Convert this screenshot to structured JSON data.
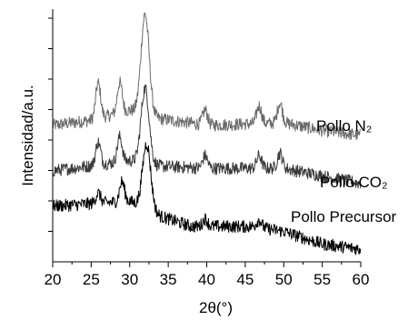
{
  "chart_data": {
    "type": "line",
    "xlabel": "2θ(°)",
    "ylabel": "Intensidad/a.u.",
    "xlim": [
      20,
      60
    ],
    "ylim": [
      0,
      100
    ],
    "x_ticks": [
      "20",
      "25",
      "30",
      "35",
      "40",
      "45",
      "50",
      "55",
      "60"
    ],
    "grid": false,
    "legend": "inline labels at right of each trace",
    "series": [
      {
        "name": "Pollo N₂",
        "color": "#6b6b6b",
        "peaks": [
          [
            25.9,
            14
          ],
          [
            28.7,
            12
          ],
          [
            32.0,
            40
          ],
          [
            39.8,
            6
          ],
          [
            46.8,
            7
          ],
          [
            49.5,
            8
          ]
        ],
        "baseline": [
          [
            20,
            54
          ],
          [
            25,
            56
          ],
          [
            30,
            60
          ],
          [
            33,
            57
          ],
          [
            40,
            54
          ],
          [
            50,
            55
          ],
          [
            55,
            52
          ],
          [
            60,
            50
          ]
        ]
      },
      {
        "name": "Pollo CO₂",
        "color": "#3a3a3a",
        "peaks": [
          [
            25.9,
            9
          ],
          [
            28.7,
            10
          ],
          [
            32.0,
            30
          ],
          [
            39.8,
            5
          ],
          [
            46.8,
            5
          ],
          [
            49.5,
            6
          ]
        ],
        "baseline": [
          [
            20,
            36
          ],
          [
            25,
            38
          ],
          [
            30,
            40
          ],
          [
            33,
            38
          ],
          [
            40,
            37
          ],
          [
            50,
            37
          ],
          [
            55,
            34
          ],
          [
            60,
            31
          ]
        ]
      },
      {
        "name": "Pollo Precursor",
        "color": "#000000",
        "peaks": [
          [
            25.9,
            4
          ],
          [
            29.0,
            8
          ],
          [
            32.2,
            26
          ],
          [
            39.8,
            3
          ],
          [
            46.8,
            3
          ]
        ],
        "baseline": [
          [
            20,
            22
          ],
          [
            25,
            23
          ],
          [
            30,
            24
          ],
          [
            34,
            18
          ],
          [
            38,
            14
          ],
          [
            46,
            14
          ],
          [
            50,
            12
          ],
          [
            55,
            7
          ],
          [
            60,
            5
          ]
        ]
      }
    ]
  }
}
